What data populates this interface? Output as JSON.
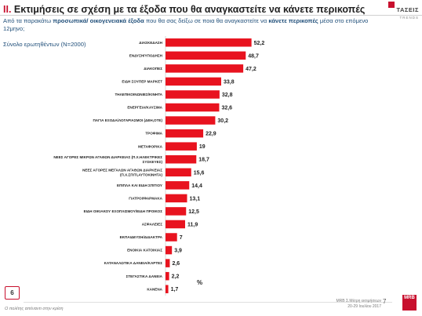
{
  "header": {
    "number": "II.",
    "title": "Εκτιμήσεις σε σχέση με τα έξοδα που θα αναγκαστείτε να κάνετε περικοπές",
    "subtitle_pre": "Από τα παρακάτω ",
    "subtitle_hl1": "προσωπικά/ οικογενειακά έξοδα",
    "subtitle_mid": " που θα σας δείξω σε ποια θα αναγκαστείτε να ",
    "subtitle_hl2": "κάνετε περικοπές",
    "subtitle_post": " μέσα στο επόμενο 12μηνο;",
    "sample": "Σύνολο ερωτηθέντων (N=2000)"
  },
  "logo": {
    "name": "ΤΑΣΕΙΣ",
    "tag": "TRENDS"
  },
  "colors": {
    "bar": "#e8131f",
    "accent": "#c8102e"
  },
  "chart_data": {
    "type": "bar",
    "orientation": "horizontal",
    "unit": "%",
    "categories": [
      "ΔΙΑΣΚΕΔΑΣΗ",
      "ΕΝΔΥΣΗ/ΥΠΟΔΗΣΗ",
      "ΔΙΑΚΟΠΕΣ",
      "ΕΙΔΗ ΣΟΥΠΕΡ ΜΑΡΚΕΤ",
      "ΤΗΛΕΠΙΚΟΙΝΩΝΙΕΣ/ΚΙΝΗΤΑ",
      "ΕΝΕΡΓΕΙΑ/ΚΑΥΣΙΜΑ",
      "ΠΑΓΙΑ ΕΞΟΔΑ/ΛΟΓΑΡΙΑΣΜΟΙ (ΔΕΗ,ΟΤΕ)",
      "ΤΡΟΦΙΜΑ",
      "ΜΕΤΑΦΟΡΙΚΑ",
      "ΝΕΕΣ ΑΓΟΡΕΣ ΜΙΚΡΩΝ ΑΓΑΘΩΝ ΔΙΑΡΚΕΙΑΣ (Π.Χ.ΗΛΕΚΤΡΙΚΕΣ ΣΥΣΚΕΥΕΣ)",
      "ΝΕΕΣ ΑΓΟΡΕΣ ΜΕΓΑΛΩΝ ΑΓΑΘΩΝ ΔΙΑΡΚΕΙΑΣ (Π.Χ.ΣΠΙΤΙ,ΑΥΤΟΚΙΝΗΤΑ)",
      "ΕΠΙΠΛΑ ΚΑΙ ΕΙΔΗ ΣΠΙΤΙΟΥ",
      "ΓΙΑΤΡΟΙ/ΦΑΡΜΑΚΑ",
      "ΕΙΔΗ ΟΙΚΙΑΚΟΥ ΕΞΟΠΛΙΣΜΟΥ/ΕΙΔΗ ΠΡΟΙΚΟΣ",
      "ΑΣΦΑΛΕΙΕΣ",
      "ΕΚΠΑΙΔΕΥΣΗ/ΔΙΔΑΚΤΡΑ",
      "ΕΝΟΙΚΙΑ ΚΑΤΟΙΚΙΑΣ",
      "ΚΑΤΑΝΑΛΩΤΙΚΑ ΔΑΝΕΙΑ/ΚΑΡΤΕΣ",
      "ΣΤΕΓΑΣΤΙΚΑ ΔΑΝΕΙΑ",
      "ΚΑΝΕΝΑ"
    ],
    "category_lines": [
      [
        "ΔΙΑΣΚΕΔΑΣΗ"
      ],
      [
        "ΕΝΔΥΣΗ/ΥΠΟΔΗΣΗ"
      ],
      [
        "ΔΙΑΚΟΠΕΣ"
      ],
      [
        "ΕΙΔΗ ΣΟΥΠΕΡ ΜΑΡΚΕΤ"
      ],
      [
        "ΤΗΛΕΠΙΚΟΙΝΩΝΙΕΣ/ΚΙΝΗΤΑ"
      ],
      [
        "ΕΝΕΡΓΕΙΑ/ΚΑΥΣΙΜΑ"
      ],
      [
        "ΠΑΓΙΑ ΕΞΟΔΑ/ΛΟΓΑΡΙΑΣΜΟΙ (ΔΕΗ,ΟΤΕ)"
      ],
      [
        "ΤΡΟΦΙΜΑ"
      ],
      [
        "ΜΕΤΑΦΟΡΙΚΑ"
      ],
      [
        "ΝΕΕΣ ΑΓΟΡΕΣ ΜΙΚΡΩΝ ΑΓΑΘΩΝ ΔΙΑΡΚΕΙΑΣ (Π.Χ.ΗΛΕΚΤΡΙΚΕΣ",
        "ΣΥΣΚΕΥΕΣ)"
      ],
      [
        "ΝΕΕΣ ΑΓΟΡΕΣ ΜΕΓΑΛΩΝ ΑΓΑΘΩΝ ΔΙΑΡΚΕΙΑΣ",
        "(Π.Χ.ΣΠΙΤΙ,ΑΥΤΟΚΙΝΗΤΑ)"
      ],
      [
        "ΕΠΙΠΛΑ ΚΑΙ ΕΙΔΗ ΣΠΙΤΙΟΥ"
      ],
      [
        "ΓΙΑΤΡΟΙ/ΦΑΡΜΑΚΑ"
      ],
      [
        "ΕΙΔΗ ΟΙΚΙΑΚΟΥ ΕΞΟΠΛΙΣΜΟΥ/ΕΙΔΗ ΠΡΟΙΚΟΣ"
      ],
      [
        "ΑΣΦΑΛΕΙΕΣ"
      ],
      [
        "ΕΚΠΑΙΔΕΥΣΗ/ΔΙΔΑΚΤΡΑ"
      ],
      [
        "ΕΝΟΙΚΙΑ ΚΑΤΟΙΚΙΑΣ"
      ],
      [
        "ΚΑΤΑΝΑΛΩΤΙΚΑ ΔΑΝΕΙΑ/ΚΑΡΤΕΣ"
      ],
      [
        "ΣΤΕΓΑΣΤΙΚΑ ΔΑΝΕΙΑ"
      ],
      [
        "ΚΑΝΕΝΑ"
      ]
    ],
    "values": [
      52.2,
      48.7,
      47.2,
      33.8,
      32.8,
      32.6,
      30.2,
      22.9,
      19,
      18.7,
      15.6,
      14.4,
      13.1,
      12.5,
      11.9,
      7,
      3.9,
      2.6,
      2.2,
      1.7
    ],
    "value_labels": [
      "52,2",
      "48,7",
      "47,2",
      "33,8",
      "32,8",
      "32,6",
      "30,2",
      "22,9",
      "19",
      "18,7",
      "15,6",
      "14,4",
      "13,1",
      "12,5",
      "11,9",
      "7",
      "3,9",
      "2,6",
      "2,2",
      "1,7"
    ],
    "xlim": [
      0,
      60
    ],
    "grid": false,
    "legend": "none"
  },
  "footer": {
    "page_box": "6",
    "left_note": "Ο πολίτης απέναντι στην κρίση",
    "right_line1": "MRB Σ.Μέτρη εκτιμήσεων",
    "right_line2": "20-29 Ιουλίου 2017",
    "page_number": "7",
    "mrb": "MRB"
  }
}
